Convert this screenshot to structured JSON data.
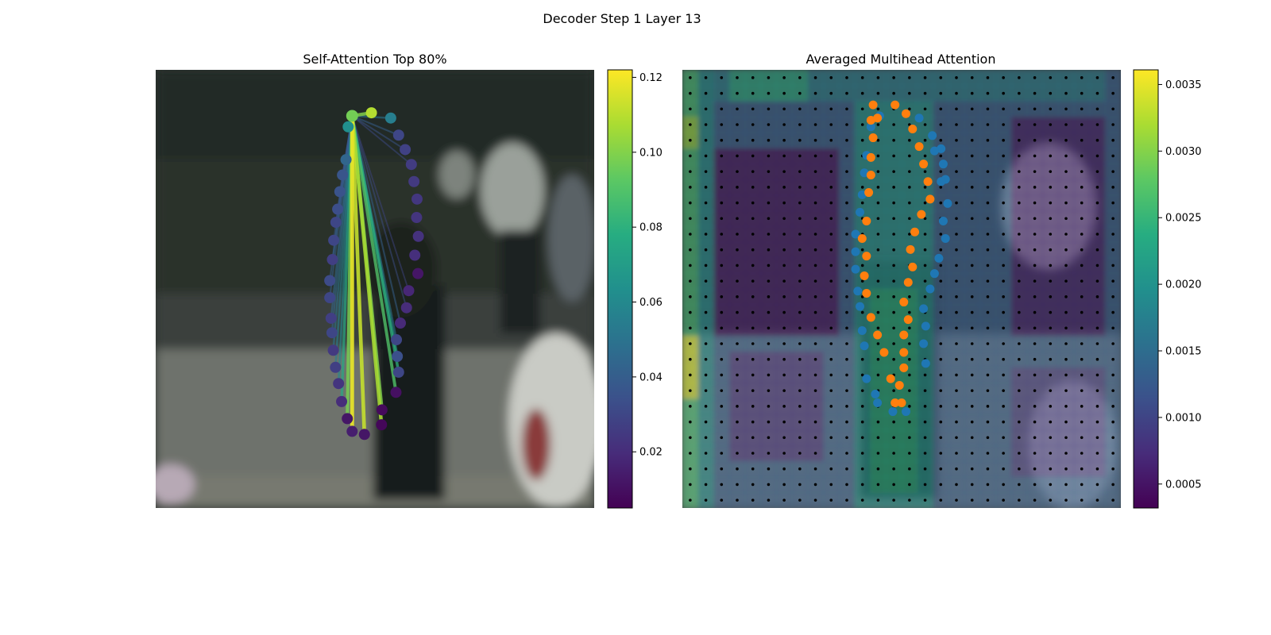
{
  "figure": {
    "suptitle": "Decoder Step 1 Layer 13"
  },
  "chart_data": [
    {
      "type": "scatter",
      "title": "Self-Attention Top 80%",
      "xlabel": "",
      "ylabel": "",
      "axes_visible": false,
      "background": "blurred photograph of a street scene (person walking, pedestrians, white car)",
      "colormap": "viridis",
      "colorbar": {
        "range": [
          0.005,
          0.122
        ],
        "ticks": [
          0.02,
          0.04,
          0.06,
          0.08,
          0.1,
          0.12
        ],
        "tick_labels": [
          "0.02",
          "0.04",
          "0.06",
          "0.08",
          "0.10",
          "0.12"
        ]
      },
      "contour_points": {
        "note_units": "image coordinates (0-100 across, 0-100 down)",
        "x": [
          49.2,
          53.6,
          55.4,
          56.9,
          58.3,
          58.9,
          59.6,
          59.5,
          59.9,
          59.1,
          59.8,
          57.7,
          57.2,
          55.8,
          54.9,
          55.1,
          55.4,
          54.8,
          51.6,
          51.5,
          47.6,
          44.8,
          43.7,
          42.4,
          41.7,
          41.0,
          40.5,
          40.2,
          40.0,
          39.7,
          39.7,
          40.3,
          40.6,
          41.1,
          41.5,
          42.0,
          42.6,
          43.4,
          43.9
        ],
        "y": [
          9.8,
          11.0,
          14.9,
          18.2,
          21.6,
          25.5,
          29.5,
          33.7,
          38.0,
          42.3,
          46.5,
          50.4,
          54.3,
          57.8,
          61.6,
          65.4,
          69.0,
          73.6,
          77.6,
          81.0,
          83.2,
          82.5,
          79.6,
          75.7,
          71.6,
          67.9,
          64.0,
          60.0,
          56.7,
          52.0,
          48.1,
          43.3,
          38.9,
          34.8,
          31.8,
          27.8,
          24.0,
          20.5,
          13.0
        ],
        "attention": [
          0.109,
          0.055,
          0.03,
          0.028,
          0.026,
          0.025,
          0.024,
          0.023,
          0.022,
          0.021,
          0.012,
          0.018,
          0.02,
          0.019,
          0.03,
          0.034,
          0.03,
          0.01,
          0.008,
          0.007,
          0.012,
          0.015,
          0.012,
          0.02,
          0.023,
          0.027,
          0.025,
          0.03,
          0.027,
          0.03,
          0.032,
          0.027,
          0.03,
          0.03,
          0.033,
          0.035,
          0.036,
          0.044,
          0.063
        ],
        "query_point": {
          "x": 44.8,
          "y": 10.5,
          "attention": 0.097
        }
      },
      "attention_lines": {
        "from": "query_point",
        "top_percent": 80,
        "targets": [
          {
            "to": 21,
            "weight": 0.118
          },
          {
            "to": 20,
            "weight": 0.112
          },
          {
            "to": 19,
            "weight": 0.107
          },
          {
            "to": 18,
            "weight": 0.1
          },
          {
            "to": 22,
            "weight": 0.098
          },
          {
            "to": 17,
            "weight": 0.09
          },
          {
            "to": 16,
            "weight": 0.08
          },
          {
            "to": 23,
            "weight": 0.075
          },
          {
            "to": 15,
            "weight": 0.07
          },
          {
            "to": 24,
            "weight": 0.06
          },
          {
            "to": 25,
            "weight": 0.055
          },
          {
            "to": 26,
            "weight": 0.05
          },
          {
            "to": 14,
            "weight": 0.05
          },
          {
            "to": 27,
            "weight": 0.045
          },
          {
            "to": 28,
            "weight": 0.045
          },
          {
            "to": 13,
            "weight": 0.04
          },
          {
            "to": 29,
            "weight": 0.04
          },
          {
            "to": 30,
            "weight": 0.04
          },
          {
            "to": 31,
            "weight": 0.038
          },
          {
            "to": 32,
            "weight": 0.038
          },
          {
            "to": 33,
            "weight": 0.035
          },
          {
            "to": 34,
            "weight": 0.035
          },
          {
            "to": 35,
            "weight": 0.035
          },
          {
            "to": 36,
            "weight": 0.033
          },
          {
            "to": 37,
            "weight": 0.033
          },
          {
            "to": 12,
            "weight": 0.033
          },
          {
            "to": 11,
            "weight": 0.03
          },
          {
            "to": 1,
            "weight": 0.05
          },
          {
            "to": 2,
            "weight": 0.04
          },
          {
            "to": 3,
            "weight": 0.035
          },
          {
            "to": 4,
            "weight": 0.032
          },
          {
            "to": 38,
            "weight": 0.06
          },
          {
            "to": 0,
            "weight": 0.1
          }
        ]
      }
    },
    {
      "type": "heatmap",
      "title": "Averaged Multihead Attention",
      "xlabel": "",
      "ylabel": "",
      "axes_visible": false,
      "colormap": "viridis",
      "overlay_alpha": 0.45,
      "grid": {
        "cols": 28,
        "rows": 28,
        "point_color": "#000000"
      },
      "colorbar": {
        "range": [
          0.00032,
          0.00361
        ],
        "ticks": [
          0.0005,
          0.001,
          0.0015,
          0.002,
          0.0025,
          0.003,
          0.0035
        ],
        "tick_labels": [
          "0.0005",
          "0.0010",
          "0.0015",
          "0.0020",
          "0.0025",
          "0.0030",
          "0.0035"
        ]
      },
      "heat_regions": {
        "note_units": "grid cells (column, row), values in attention units",
        "base_value": 0.0013,
        "bands": [
          {
            "cols": [
              0,
              0
            ],
            "rows": [
              0,
              27
            ],
            "value": 0.0026
          },
          {
            "cols": [
              0,
              0
            ],
            "rows": [
              3,
              4
            ],
            "value": 0.0031
          },
          {
            "cols": [
              0,
              0
            ],
            "rows": [
              17,
              20
            ],
            "value": 0.0034
          },
          {
            "cols": [
              1,
              1
            ],
            "rows": [
              0,
              27
            ],
            "value": 0.0019
          },
          {
            "cols": [
              2,
              9
            ],
            "rows": [
              5,
              16
            ],
            "value": 0.0005
          },
          {
            "cols": [
              3,
              8
            ],
            "rows": [
              18,
              24
            ],
            "value": 0.0008
          },
          {
            "cols": [
              11,
              15
            ],
            "rows": [
              2,
              27
            ],
            "value": 0.002
          },
          {
            "cols": [
              12,
              14
            ],
            "rows": [
              14,
              26
            ],
            "value": 0.0024
          },
          {
            "cols": [
              21,
              26
            ],
            "rows": [
              3,
              16
            ],
            "value": 0.0006
          },
          {
            "cols": [
              21,
              26
            ],
            "rows": [
              19,
              25
            ],
            "value": 0.0009
          },
          {
            "cols": [
              2,
              26
            ],
            "rows": [
              0,
              1
            ],
            "value": 0.0017
          },
          {
            "cols": [
              3,
              7
            ],
            "rows": [
              0,
              1
            ],
            "value": 0.0023
          }
        ]
      },
      "series": [
        {
          "name": "",
          "color": "#1f77b4",
          "note_units": "image coordinates (0-100 across, 0-100 down)",
          "x": [
            45.0,
            54.0,
            57.0,
            59.0,
            57.5,
            59.5,
            60.0,
            59.0,
            60.5,
            59.5,
            60.0,
            58.5,
            57.5,
            56.5,
            55.0,
            55.5,
            55.0,
            55.5,
            51.0,
            48.0,
            44.5,
            44.0,
            42.0,
            41.5,
            41.0,
            40.5,
            40.0,
            39.5,
            39.5,
            39.5,
            40.5,
            41.0,
            41.5,
            42.0,
            43.0
          ],
          "y": [
            10.5,
            11.0,
            15.0,
            18.0,
            18.5,
            21.5,
            25.0,
            25.5,
            30.5,
            34.5,
            38.5,
            43.0,
            46.5,
            50.0,
            54.5,
            58.5,
            62.5,
            67.0,
            78.0,
            78.0,
            76.0,
            74.0,
            70.5,
            63.0,
            59.5,
            54.0,
            50.5,
            45.5,
            41.5,
            37.5,
            32.5,
            28.5,
            23.5,
            19.5,
            13.0
          ]
        },
        {
          "name": "",
          "color": "#ff7f0e",
          "note_units": "image coordinates (0-100 across, 0-100 down)",
          "x": [
            48.5,
            51.0,
            52.5,
            54.0,
            55.0,
            56.0,
            56.5,
            54.5,
            53.0,
            52.0,
            52.5,
            51.5,
            50.5,
            51.5,
            50.5,
            50.5,
            50.5,
            49.5,
            50.0,
            48.5,
            47.5,
            46.0,
            44.5,
            43.0,
            42.0,
            41.5,
            42.0,
            41.0,
            42.0,
            42.5,
            43.0,
            43.0,
            43.5,
            43.0,
            43.5,
            44.5
          ],
          "y": [
            8.0,
            10.0,
            13.5,
            17.5,
            21.5,
            25.5,
            29.5,
            33.0,
            37.0,
            41.0,
            45.0,
            48.5,
            53.0,
            57.0,
            60.5,
            64.5,
            68.0,
            72.0,
            76.0,
            76.0,
            70.5,
            64.5,
            60.5,
            56.5,
            51.0,
            47.0,
            42.5,
            38.5,
            34.5,
            28.0,
            24.0,
            20.0,
            15.5,
            11.5,
            8.0,
            11.0
          ]
        }
      ]
    }
  ]
}
